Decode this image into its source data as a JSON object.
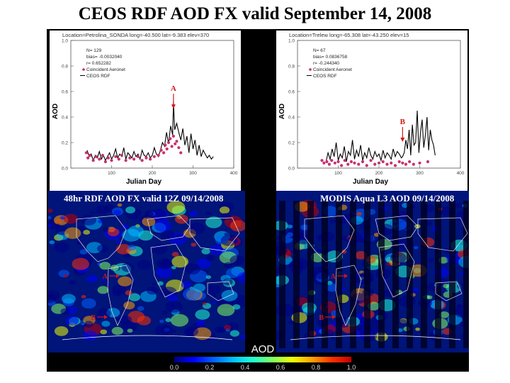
{
  "title": "CEOS RDF AOD FX valid September 14, 2008",
  "colors": {
    "series": "#000000",
    "incident": "#c8306e",
    "annotation": "#d01818",
    "map_bg": "#00147a"
  },
  "chart_data": [
    {
      "type": "line",
      "header": "Location=Petrolina_SONDA long=-40.500 lat=-9.383 elev=370",
      "stats": [
        "N=    129",
        "bias= -0.0032040",
        "r=    0.652282"
      ],
      "legend": [
        "Coincident Aeronet",
        "CEOS RDF"
      ],
      "xlabel": "Julian Day",
      "ylabel": "AOD",
      "xticks": [
        "100",
        "200",
        "300",
        "400"
      ],
      "yticks": [
        "0.0",
        "0.2",
        "0.4",
        "0.6",
        "0.8",
        "1.0"
      ],
      "xlim": [
        0,
        400
      ],
      "ylim": [
        0,
        1.0
      ],
      "annotation": {
        "label": "A",
        "x": 252,
        "y": 0.46
      },
      "series": [
        {
          "role": "line",
          "x": [
            40,
            45,
            50,
            55,
            60,
            65,
            70,
            75,
            80,
            85,
            90,
            95,
            100,
            105,
            110,
            115,
            120,
            125,
            130,
            135,
            140,
            145,
            150,
            155,
            160,
            165,
            170,
            175,
            180,
            185,
            190,
            195,
            200,
            205,
            210,
            215,
            220,
            225,
            230,
            235,
            240,
            245,
            250,
            252,
            255,
            260,
            265,
            270,
            275,
            280,
            285,
            290,
            295,
            300,
            305,
            310,
            315,
            320,
            325,
            330,
            335,
            340,
            345,
            350
          ],
          "y": [
            0.14,
            0.09,
            0.11,
            0.06,
            0.1,
            0.08,
            0.13,
            0.07,
            0.1,
            0.06,
            0.09,
            0.12,
            0.07,
            0.1,
            0.15,
            0.08,
            0.11,
            0.09,
            0.16,
            0.07,
            0.12,
            0.1,
            0.08,
            0.13,
            0.09,
            0.11,
            0.07,
            0.14,
            0.1,
            0.09,
            0.12,
            0.08,
            0.1,
            0.16,
            0.11,
            0.09,
            0.14,
            0.2,
            0.17,
            0.28,
            0.19,
            0.33,
            0.26,
            0.52,
            0.3,
            0.35,
            0.28,
            0.22,
            0.31,
            0.18,
            0.25,
            0.12,
            0.27,
            0.15,
            0.22,
            0.1,
            0.18,
            0.09,
            0.14,
            0.11,
            0.08,
            0.1,
            0.07,
            0.09
          ]
        },
        {
          "role": "points",
          "x": [
            38,
            42,
            47,
            55,
            62,
            70,
            78,
            85,
            92,
            100,
            110,
            118,
            125,
            135,
            145,
            155,
            165,
            175,
            185,
            195,
            205,
            215,
            222,
            228,
            232,
            236,
            240,
            244,
            248,
            252,
            256,
            260,
            265,
            270
          ],
          "y": [
            0.12,
            0.08,
            0.1,
            0.06,
            0.09,
            0.07,
            0.1,
            0.05,
            0.08,
            0.06,
            0.09,
            0.07,
            0.1,
            0.06,
            0.08,
            0.07,
            0.09,
            0.06,
            0.08,
            0.07,
            0.09,
            0.1,
            0.14,
            0.12,
            0.18,
            0.15,
            0.2,
            0.23,
            0.17,
            0.25,
            0.19,
            0.21,
            0.16,
            0.12
          ]
        }
      ]
    },
    {
      "type": "line",
      "header": "Location=Trelew long=-65.308 lat=-43.250 elev=15",
      "stats": [
        "N=    67",
        "bias= 0.0836758",
        "r=    -0.244340"
      ],
      "legend": [
        "Coincident Aeronet",
        "CEOS RDF"
      ],
      "xlabel": "Julian Day",
      "ylabel": "AOD",
      "xticks": [
        "100",
        "200",
        "300",
        "400"
      ],
      "yticks": [
        "0.0",
        "0.2",
        "0.4",
        "0.6",
        "0.8",
        "1.0"
      ],
      "xlim": [
        0,
        400
      ],
      "ylim": [
        0,
        1.0
      ],
      "annotation": {
        "label": "B",
        "x": 258,
        "y": 0.2
      },
      "series": [
        {
          "role": "line",
          "x": [
            70,
            75,
            80,
            85,
            90,
            95,
            100,
            105,
            110,
            115,
            120,
            125,
            130,
            135,
            140,
            145,
            150,
            155,
            160,
            165,
            170,
            175,
            180,
            185,
            190,
            195,
            200,
            205,
            210,
            215,
            220,
            225,
            230,
            235,
            240,
            245,
            250,
            255,
            258,
            262,
            266,
            270,
            274,
            278,
            282,
            286,
            290,
            294,
            298,
            302,
            306,
            310,
            314,
            318,
            322,
            326,
            330,
            334,
            338
          ],
          "y": [
            0.05,
            0.12,
            0.07,
            0.15,
            0.09,
            0.2,
            0.06,
            0.11,
            0.08,
            0.17,
            0.05,
            0.13,
            0.1,
            0.22,
            0.07,
            0.14,
            0.09,
            0.18,
            0.06,
            0.12,
            0.08,
            0.16,
            0.1,
            0.07,
            0.13,
            0.09,
            0.11,
            0.06,
            0.14,
            0.08,
            0.12,
            0.1,
            0.07,
            0.15,
            0.09,
            0.13,
            0.11,
            0.08,
            0.09,
            0.12,
            0.22,
            0.15,
            0.3,
            0.1,
            0.34,
            0.18,
            0.2,
            0.45,
            0.12,
            0.28,
            0.38,
            0.16,
            0.26,
            0.4,
            0.14,
            0.3,
            0.22,
            0.18,
            0.1
          ]
        },
        {
          "role": "points",
          "x": [
            60,
            65,
            72,
            78,
            84,
            92,
            100,
            108,
            116,
            124,
            132,
            140,
            150,
            160,
            170,
            180,
            190,
            200,
            210,
            220,
            230,
            240,
            250,
            258,
            266,
            275,
            285,
            300,
            320
          ],
          "y": [
            0.06,
            0.04,
            0.05,
            0.03,
            0.06,
            0.04,
            0.05,
            0.02,
            0.06,
            0.03,
            0.05,
            0.04,
            0.03,
            0.05,
            0.02,
            0.06,
            0.03,
            0.04,
            0.05,
            0.03,
            0.04,
            0.02,
            0.05,
            0.04,
            0.03,
            0.05,
            0.03,
            0.04,
            0.05
          ]
        }
      ]
    },
    {
      "type": "heatmap",
      "label": "48hr RDF AOD FX valid 12Z 09/14/2008",
      "markers": [
        {
          "label": "A"
        },
        {
          "label": "B"
        }
      ]
    },
    {
      "type": "heatmap",
      "label": "MODIS Aqua L3 AOD 09/14/2008",
      "markers": [
        {
          "label": "A"
        },
        {
          "label": "B"
        }
      ]
    }
  ],
  "colorbar": {
    "title": "AOD",
    "ticks": [
      "0.0",
      "0.2",
      "0.4",
      "0.6",
      "0.8",
      "1.0"
    ],
    "range": [
      0,
      1.0
    ],
    "colors": [
      "#000080",
      "#0000ff",
      "#0060ff",
      "#00c0ff",
      "#20ffd0",
      "#80ff60",
      "#f0ff00",
      "#ffa000",
      "#ff3000",
      "#c00000"
    ]
  }
}
